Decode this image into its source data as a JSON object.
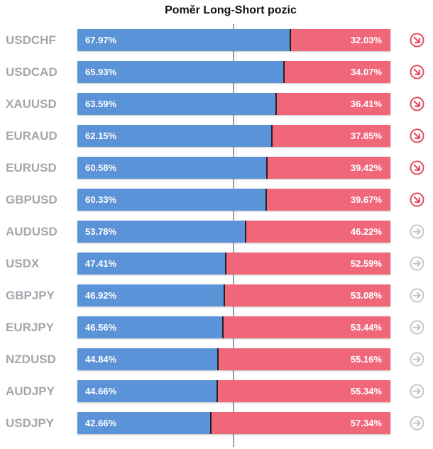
{
  "chart_data": {
    "type": "bar",
    "title": "Poměr Long-Short pozic",
    "categories": [
      "USDCHF",
      "USDCAD",
      "XAUUSD",
      "EURAUD",
      "EURUSD",
      "GBPUSD",
      "AUDUSD",
      "USDX",
      "GBPJPY",
      "EURJPY",
      "NZDUSD",
      "AUDJPY",
      "USDJPY"
    ],
    "series": [
      {
        "values": [
          67.97,
          65.93,
          63.59,
          62.15,
          60.58,
          60.33,
          53.78,
          47.41,
          46.92,
          46.56,
          44.84,
          44.66,
          42.66
        ],
        "color": "#5b93d8"
      },
      {
        "values": [
          32.03,
          34.07,
          36.41,
          37.85,
          39.42,
          39.67,
          46.22,
          52.59,
          53.08,
          53.44,
          55.16,
          55.34,
          57.34
        ],
        "color": "#f0677a"
      }
    ],
    "long_labels": [
      "67.97%",
      "65.93%",
      "63.59%",
      "62.15%",
      "60.58%",
      "60.33%",
      "53.78%",
      "47.41%",
      "46.92%",
      "46.56%",
      "44.84%",
      "44.66%",
      "42.66%"
    ],
    "short_labels": [
      "32.03%",
      "34.07%",
      "36.41%",
      "37.85%",
      "39.42%",
      "39.67%",
      "46.22%",
      "52.59%",
      "53.08%",
      "53.44%",
      "55.16%",
      "55.34%",
      "57.34%"
    ],
    "icons": [
      "arrow-down-right-icon",
      "arrow-down-right-icon",
      "arrow-down-right-icon",
      "arrow-down-right-icon",
      "arrow-down-right-icon",
      "arrow-down-right-icon",
      "arrow-right-icon",
      "arrow-right-icon",
      "arrow-right-icon",
      "arrow-right-icon",
      "arrow-right-icon",
      "arrow-right-icon",
      "arrow-right-icon"
    ],
    "reference_line": 50,
    "ylim": [
      0,
      100
    ],
    "colors": {
      "long": "#5b93d8",
      "short": "#f0677a",
      "icon_down": "#e8455a",
      "icon_neutral": "#c2c6cc"
    }
  }
}
